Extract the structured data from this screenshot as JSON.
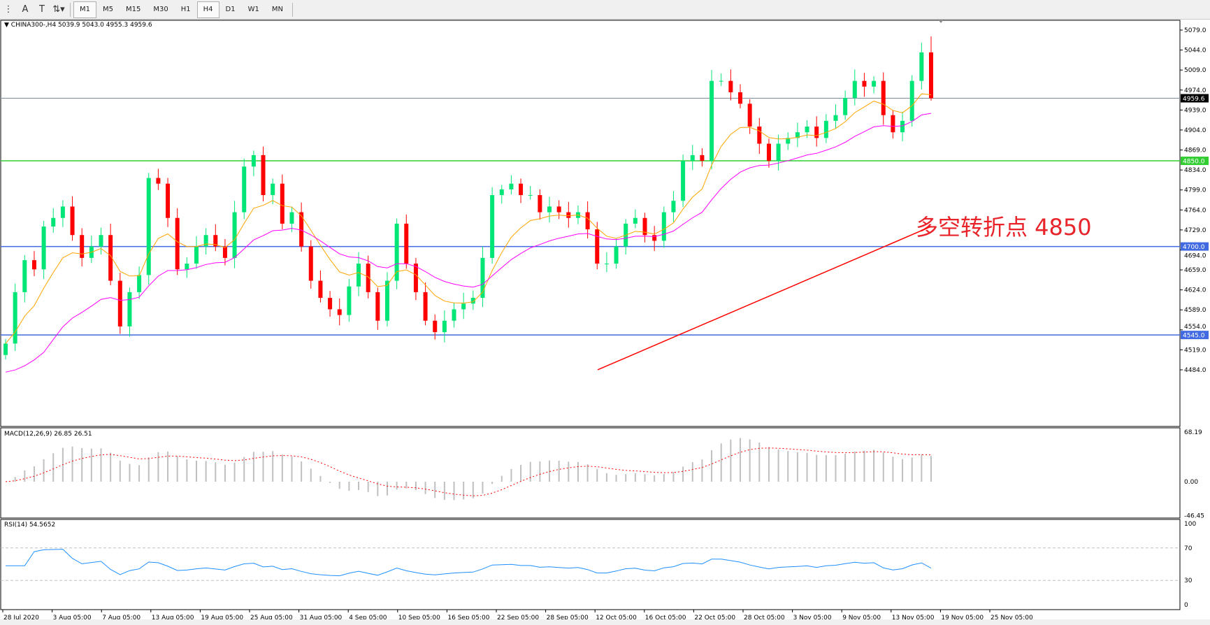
{
  "toolbar": {
    "icons": [
      "period-separator-icon",
      "text-label-icon",
      "text-box-icon",
      "arrows-icon"
    ],
    "timeframes": [
      "M1",
      "M5",
      "M15",
      "M30",
      "H1",
      "H4",
      "D1",
      "W1",
      "MN"
    ],
    "active_timeframe": "H4"
  },
  "main": {
    "header": "CHINA300-,H4  5039.9 5043.0 4955.3 4959.6",
    "annotation": "多空转折点 4850",
    "price_ticks": [
      "5079.0",
      "5044.0",
      "5009.0",
      "4974.0",
      "4939.0",
      "4904.0",
      "4869.0",
      "4834.0",
      "4799.0",
      "4764.0",
      "4729.0",
      "4694.0",
      "4659.0",
      "4624.0",
      "4589.0",
      "4554.0",
      "4519.0",
      "4484.0"
    ],
    "hlines": [
      {
        "value": 4959.6,
        "label": "4959.6",
        "color": "#7a8ca0",
        "label_bg": "#000000"
      },
      {
        "value": 4850.0,
        "label": "4850.0",
        "color": "#32cd32",
        "label_bg": "#32cd32"
      },
      {
        "value": 4700.0,
        "label": "4700.0",
        "color": "#4169e1",
        "label_bg": "#4169e1"
      },
      {
        "value": 4545.0,
        "label": "4545.0",
        "color": "#4169e1",
        "label_bg": "#4169e1"
      }
    ],
    "time_labels": [
      "28 Jul 2020",
      "3 Aug 05:00",
      "7 Aug 05:00",
      "13 Aug 05:00",
      "19 Aug 05:00",
      "25 Aug 05:00",
      "31 Aug 05:00",
      "4 Sep 05:00",
      "10 Sep 05:00",
      "16 Sep 05:00",
      "22 Sep 05:00",
      "28 Sep 05:00",
      "12 Oct 05:00",
      "16 Oct 05:00",
      "22 Oct 05:00",
      "28 Oct 05:00",
      "3 Nov 05:00",
      "9 Nov 05:00",
      "13 Nov 05:00",
      "19 Nov 05:00",
      "25 Nov 05:00"
    ]
  },
  "macd": {
    "label": "MACD(12,26,9) 26.85 26.51",
    "ticks": [
      "68.19",
      "0.00",
      "-46.45"
    ]
  },
  "rsi": {
    "label": "RSI(14) 54.5652",
    "ticks": [
      "100",
      "70",
      "30",
      "0"
    ]
  },
  "chart_data": {
    "type": "candlestick",
    "symbol": "CHINA300-",
    "timeframe": "H4",
    "ylim": [
      4484,
      5079
    ],
    "colors": {
      "bull": "#00e676",
      "bear": "#ff0000",
      "fast_ma": "#ffa500",
      "slow_ma": "#ff00ff",
      "long_ma": "#ff0000"
    },
    "closes": [
      4530,
      4620,
      4676,
      4660,
      4735,
      4750,
      4770,
      4720,
      4680,
      4700,
      4720,
      4640,
      4560,
      4620,
      4650,
      4820,
      4810,
      4750,
      4660,
      4670,
      4700,
      4720,
      4700,
      4680,
      4760,
      4840,
      4860,
      4790,
      4810,
      4740,
      4760,
      4700,
      4640,
      4610,
      4590,
      4580,
      4630,
      4670,
      4620,
      4570,
      4640,
      4740,
      4670,
      4620,
      4570,
      4550,
      4570,
      4590,
      4600,
      4610,
      4680,
      4790,
      4800,
      4810,
      4790,
      4790,
      4760,
      4770,
      4760,
      4750,
      4760,
      4730,
      4670,
      4670,
      4700,
      4740,
      4750,
      4720,
      4710,
      4760,
      4780,
      4850,
      4860,
      4850,
      4990,
      4990,
      4970,
      4950,
      4910,
      4880,
      4850,
      4880,
      4890,
      4900,
      4910,
      4890,
      4920,
      4930,
      4960,
      4990,
      4980,
      4990,
      4930,
      4900,
      4920,
      4990,
      5039.9,
      4959.6
    ],
    "last_bar": {
      "open": 5039.9,
      "high": 5043.0,
      "low": 4955.3,
      "close": 4959.6
    },
    "long_ma": {
      "start": 4484,
      "end": 4735
    },
    "macd_range": [
      -46.45,
      68.19
    ],
    "rsi_levels": [
      70,
      30
    ]
  }
}
